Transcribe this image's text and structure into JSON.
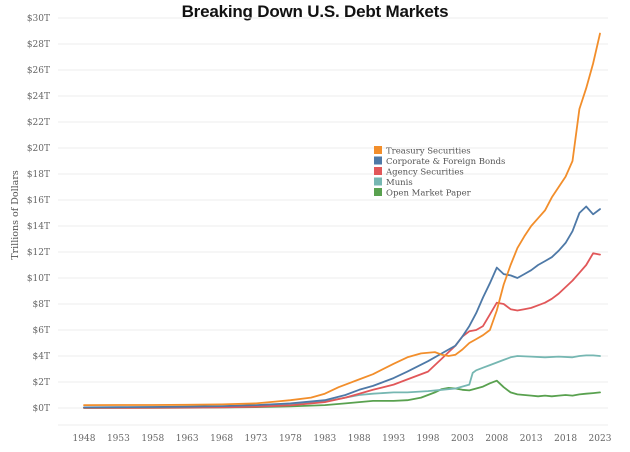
{
  "chart_data": {
    "type": "line",
    "title": "Breaking Down U.S. Debt Markets",
    "xlabel": "",
    "ylabel": "Trillions of Dollars",
    "xlim": [
      1946,
      2025
    ],
    "ylim": [
      0,
      30
    ],
    "grid": true,
    "legend_position": "center-right",
    "x_ticks": [
      1948,
      1953,
      1958,
      1963,
      1968,
      1973,
      1978,
      1983,
      1988,
      1993,
      1998,
      2003,
      2008,
      2013,
      2018,
      2023
    ],
    "x_tick_labels": [
      "1948",
      "1953",
      "1958",
      "1963",
      "1968",
      "1973",
      "1978",
      "1983",
      "1988",
      "1993",
      "1998",
      "2003",
      "2008",
      "2013",
      "2018",
      "2023"
    ],
    "y_ticks": [
      0,
      2,
      4,
      6,
      8,
      10,
      12,
      14,
      16,
      18,
      20,
      22,
      24,
      26,
      28,
      30
    ],
    "y_tick_labels": [
      "$0T",
      "$2T",
      "$4T",
      "$6T",
      "$8T",
      "$10T",
      "$12T",
      "$14T",
      "$16T",
      "$18T",
      "$20T",
      "$22T",
      "$24T",
      "$26T",
      "$28T",
      "$30T"
    ],
    "series": [
      {
        "name": "Treasury Securities",
        "color": "#f28e2b",
        "points": [
          [
            1948,
            0.22
          ],
          [
            1953,
            0.23
          ],
          [
            1958,
            0.23
          ],
          [
            1963,
            0.25
          ],
          [
            1968,
            0.28
          ],
          [
            1973,
            0.35
          ],
          [
            1976,
            0.5
          ],
          [
            1978,
            0.6
          ],
          [
            1981,
            0.8
          ],
          [
            1983,
            1.1
          ],
          [
            1985,
            1.6
          ],
          [
            1988,
            2.2
          ],
          [
            1990,
            2.6
          ],
          [
            1993,
            3.4
          ],
          [
            1995,
            3.9
          ],
          [
            1997,
            4.2
          ],
          [
            1999,
            4.3
          ],
          [
            2000,
            4.1
          ],
          [
            2001,
            4.0
          ],
          [
            2002,
            4.1
          ],
          [
            2003,
            4.5
          ],
          [
            2004,
            5.0
          ],
          [
            2005,
            5.3
          ],
          [
            2006,
            5.6
          ],
          [
            2007,
            6.0
          ],
          [
            2008,
            7.5
          ],
          [
            2009,
            9.5
          ],
          [
            2010,
            11.0
          ],
          [
            2011,
            12.3
          ],
          [
            2012,
            13.2
          ],
          [
            2013,
            14.0
          ],
          [
            2014,
            14.6
          ],
          [
            2015,
            15.2
          ],
          [
            2016,
            16.2
          ],
          [
            2017,
            17.0
          ],
          [
            2018,
            17.8
          ],
          [
            2019,
            19.0
          ],
          [
            2020,
            23.0
          ],
          [
            2021,
            24.6
          ],
          [
            2022,
            26.5
          ],
          [
            2023,
            28.8
          ]
        ]
      },
      {
        "name": "Corporate & Foreign Bonds",
        "color": "#4e79a7",
        "points": [
          [
            1948,
            0.05
          ],
          [
            1953,
            0.06
          ],
          [
            1958,
            0.08
          ],
          [
            1963,
            0.1
          ],
          [
            1968,
            0.15
          ],
          [
            1973,
            0.22
          ],
          [
            1978,
            0.35
          ],
          [
            1983,
            0.6
          ],
          [
            1986,
            1.0
          ],
          [
            1988,
            1.4
          ],
          [
            1990,
            1.7
          ],
          [
            1993,
            2.3
          ],
          [
            1995,
            2.8
          ],
          [
            1998,
            3.6
          ],
          [
            2000,
            4.2
          ],
          [
            2001,
            4.5
          ],
          [
            2002,
            4.8
          ],
          [
            2003,
            5.5
          ],
          [
            2004,
            6.3
          ],
          [
            2005,
            7.3
          ],
          [
            2006,
            8.5
          ],
          [
            2007,
            9.6
          ],
          [
            2008,
            10.8
          ],
          [
            2009,
            10.3
          ],
          [
            2010,
            10.2
          ],
          [
            2011,
            10.0
          ],
          [
            2012,
            10.3
          ],
          [
            2013,
            10.6
          ],
          [
            2014,
            11.0
          ],
          [
            2015,
            11.3
          ],
          [
            2016,
            11.6
          ],
          [
            2017,
            12.1
          ],
          [
            2018,
            12.7
          ],
          [
            2019,
            13.6
          ],
          [
            2020,
            15.0
          ],
          [
            2021,
            15.5
          ],
          [
            2022,
            14.9
          ],
          [
            2023,
            15.3
          ]
        ]
      },
      {
        "name": "Agency Securities",
        "color": "#e15759",
        "points": [
          [
            1948,
            0.01
          ],
          [
            1953,
            0.01
          ],
          [
            1958,
            0.02
          ],
          [
            1963,
            0.03
          ],
          [
            1968,
            0.05
          ],
          [
            1973,
            0.1
          ],
          [
            1978,
            0.2
          ],
          [
            1983,
            0.45
          ],
          [
            1986,
            0.8
          ],
          [
            1988,
            1.1
          ],
          [
            1990,
            1.4
          ],
          [
            1993,
            1.8
          ],
          [
            1995,
            2.2
          ],
          [
            1998,
            2.8
          ],
          [
            2000,
            3.8
          ],
          [
            2001,
            4.3
          ],
          [
            2002,
            4.8
          ],
          [
            2003,
            5.5
          ],
          [
            2004,
            5.9
          ],
          [
            2005,
            6.0
          ],
          [
            2006,
            6.3
          ],
          [
            2007,
            7.2
          ],
          [
            2008,
            8.1
          ],
          [
            2009,
            8.0
          ],
          [
            2010,
            7.6
          ],
          [
            2011,
            7.5
          ],
          [
            2012,
            7.6
          ],
          [
            2013,
            7.7
          ],
          [
            2014,
            7.9
          ],
          [
            2015,
            8.1
          ],
          [
            2016,
            8.4
          ],
          [
            2017,
            8.8
          ],
          [
            2018,
            9.3
          ],
          [
            2019,
            9.8
          ],
          [
            2020,
            10.4
          ],
          [
            2021,
            11.0
          ],
          [
            2022,
            11.9
          ],
          [
            2023,
            11.8
          ]
        ]
      },
      {
        "name": "Munis",
        "color": "#76b7b2",
        "points": [
          [
            1948,
            0.02
          ],
          [
            1953,
            0.04
          ],
          [
            1958,
            0.06
          ],
          [
            1963,
            0.09
          ],
          [
            1968,
            0.12
          ],
          [
            1973,
            0.18
          ],
          [
            1978,
            0.3
          ],
          [
            1983,
            0.5
          ],
          [
            1986,
            0.8
          ],
          [
            1988,
            1.0
          ],
          [
            1990,
            1.1
          ],
          [
            1993,
            1.2
          ],
          [
            1995,
            1.2
          ],
          [
            1998,
            1.3
          ],
          [
            2000,
            1.4
          ],
          [
            2002,
            1.5
          ],
          [
            2004,
            1.8
          ],
          [
            2004.5,
            2.7
          ],
          [
            2005,
            2.9
          ],
          [
            2006,
            3.1
          ],
          [
            2007,
            3.3
          ],
          [
            2008,
            3.5
          ],
          [
            2009,
            3.7
          ],
          [
            2010,
            3.9
          ],
          [
            2011,
            4.0
          ],
          [
            2013,
            3.95
          ],
          [
            2015,
            3.9
          ],
          [
            2017,
            3.95
          ],
          [
            2019,
            3.9
          ],
          [
            2020,
            4.0
          ],
          [
            2021,
            4.05
          ],
          [
            2022,
            4.05
          ],
          [
            2023,
            4.0
          ]
        ]
      },
      {
        "name": "Open Market Paper",
        "color": "#59a14f",
        "points": [
          [
            1948,
            0.0
          ],
          [
            1953,
            0.01
          ],
          [
            1958,
            0.01
          ],
          [
            1963,
            0.02
          ],
          [
            1968,
            0.04
          ],
          [
            1973,
            0.07
          ],
          [
            1978,
            0.12
          ],
          [
            1983,
            0.22
          ],
          [
            1986,
            0.35
          ],
          [
            1988,
            0.45
          ],
          [
            1990,
            0.55
          ],
          [
            1993,
            0.55
          ],
          [
            1995,
            0.6
          ],
          [
            1997,
            0.8
          ],
          [
            1999,
            1.2
          ],
          [
            2000,
            1.45
          ],
          [
            2001,
            1.55
          ],
          [
            2002,
            1.5
          ],
          [
            2003,
            1.4
          ],
          [
            2004,
            1.35
          ],
          [
            2005,
            1.5
          ],
          [
            2006,
            1.65
          ],
          [
            2007,
            1.9
          ],
          [
            2008,
            2.1
          ],
          [
            2009,
            1.6
          ],
          [
            2010,
            1.2
          ],
          [
            2011,
            1.05
          ],
          [
            2012,
            1.0
          ],
          [
            2013,
            0.95
          ],
          [
            2014,
            0.9
          ],
          [
            2015,
            0.95
          ],
          [
            2016,
            0.9
          ],
          [
            2017,
            0.95
          ],
          [
            2018,
            1.0
          ],
          [
            2019,
            0.95
          ],
          [
            2020,
            1.05
          ],
          [
            2021,
            1.1
          ],
          [
            2022,
            1.15
          ],
          [
            2023,
            1.2
          ]
        ]
      }
    ]
  }
}
